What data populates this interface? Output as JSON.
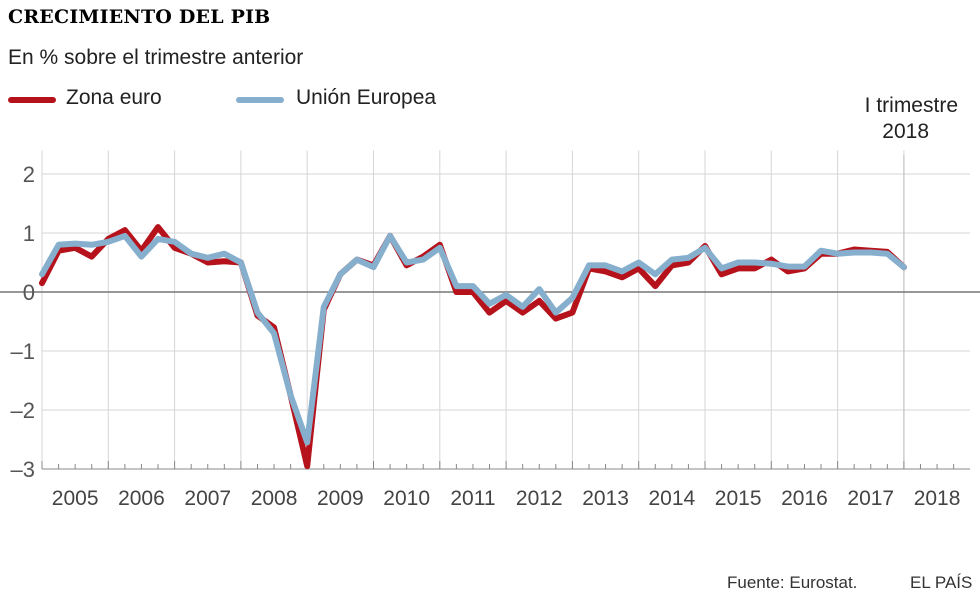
{
  "chart_data": {
    "type": "line",
    "title": "CRECIMIENTO DEL PIB",
    "subtitle": "En % sobre el trimestre anterior",
    "ylim": [
      -3,
      2.4
    ],
    "yticks": [
      2,
      1,
      0,
      -1,
      -2,
      -3
    ],
    "ytick_labels": [
      "2",
      "1",
      "0",
      "–1",
      "–2",
      "–3"
    ],
    "year_labels": [
      "2005",
      "2006",
      "2007",
      "2008",
      "2009",
      "2010",
      "2011",
      "2012",
      "2013",
      "2014",
      "2015",
      "2016",
      "2017",
      "2018"
    ],
    "x_start_year": 2005,
    "quarters_per_year": 4,
    "annotation": {
      "line1": "I trimestre",
      "line2": "2018"
    },
    "series": [
      {
        "name": "Zona euro",
        "color": "#b5121b",
        "values": [
          0.15,
          0.7,
          0.75,
          0.6,
          0.9,
          1.05,
          0.7,
          1.1,
          0.75,
          0.65,
          0.5,
          0.52,
          0.5,
          -0.4,
          -0.6,
          -1.75,
          -2.95,
          -0.3,
          0.3,
          0.55,
          0.45,
          0.95,
          0.45,
          0.6,
          0.8,
          0.0,
          0.0,
          -0.35,
          -0.15,
          -0.35,
          -0.15,
          -0.45,
          -0.35,
          0.4,
          0.35,
          0.25,
          0.4,
          0.1,
          0.45,
          0.5,
          0.78,
          0.3,
          0.4,
          0.4,
          0.55,
          0.35,
          0.4,
          0.65,
          0.65,
          0.72,
          0.7,
          0.68,
          0.42
        ]
      },
      {
        "name": "Unión Europea",
        "color": "#86aecd",
        "values": [
          0.3,
          0.8,
          0.82,
          0.8,
          0.85,
          0.95,
          0.6,
          0.9,
          0.85,
          0.65,
          0.58,
          0.65,
          0.5,
          -0.35,
          -0.7,
          -1.75,
          -2.55,
          -0.25,
          0.3,
          0.55,
          0.42,
          0.95,
          0.5,
          0.55,
          0.75,
          0.1,
          0.1,
          -0.2,
          -0.05,
          -0.25,
          0.05,
          -0.35,
          -0.1,
          0.45,
          0.45,
          0.35,
          0.5,
          0.3,
          0.55,
          0.58,
          0.75,
          0.4,
          0.5,
          0.5,
          0.48,
          0.43,
          0.43,
          0.7,
          0.65,
          0.67,
          0.67,
          0.65,
          0.42
        ]
      }
    ]
  },
  "footer": {
    "source": "Fuente: Eurostat.",
    "brand": "EL PAÍS"
  }
}
